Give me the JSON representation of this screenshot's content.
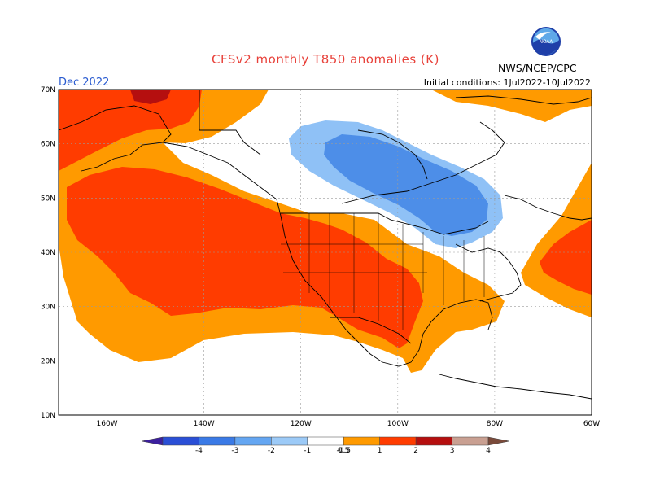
{
  "header": {
    "title": "CFSv2 monthly T850 anomalies (K)",
    "month": "Dec 2022",
    "initial_conditions": "Initial conditions: 1Jul2022-10Jul2022",
    "agency": "NWS/NCEP/CPC",
    "logo_text": "NOAA"
  },
  "map": {
    "lon_range": [
      -170,
      -60
    ],
    "lat_range": [
      10,
      70
    ],
    "lat_ticks": [
      "10N",
      "20N",
      "30N",
      "40N",
      "50N",
      "60N",
      "70N"
    ],
    "lon_ticks": [
      "160W",
      "140W",
      "120W",
      "100W",
      "80W",
      "60W"
    ]
  },
  "colorbar": {
    "labels": [
      "-4",
      "-3",
      "-2",
      "-1",
      "-0.5",
      "0.5",
      "1",
      "2",
      "3",
      "4"
    ],
    "colors": [
      "#3c1f9e",
      "#2a4fd6",
      "#3a7ae6",
      "#64a6f2",
      "#9ccaf7",
      "#ffffff",
      "#ff9a00",
      "#ff3c00",
      "#b50f0f",
      "#c9a092",
      "#7a4a3a"
    ]
  },
  "colors": {
    "warm_light": "#ff9a00",
    "warm_mid": "#ff4a1a",
    "warm_dark": "#b50f0f",
    "cold_light": "#8fc1f6",
    "cold_mid": "#4d8ee8",
    "cold_dark": "#2a66dc",
    "neutral": "#ffffff",
    "grid": "#9a9a9a"
  }
}
